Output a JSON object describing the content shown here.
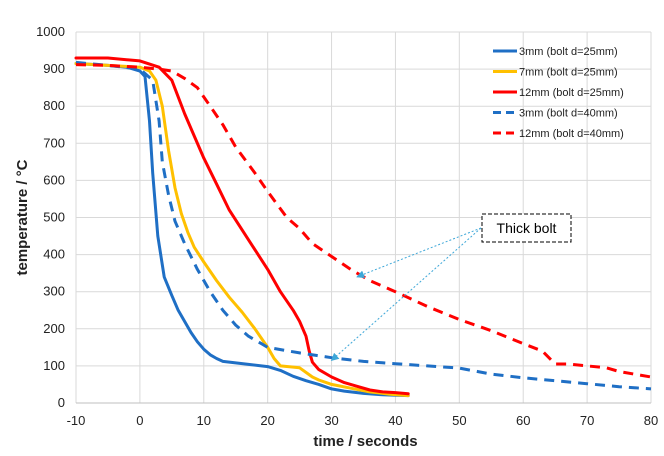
{
  "chart_data": {
    "type": "line",
    "title": "",
    "xlabel": "time / seconds",
    "ylabel": "temperature / °C",
    "xlim": [
      -10,
      80
    ],
    "ylim": [
      0,
      1000
    ],
    "xticks": [
      -10,
      0,
      10,
      20,
      30,
      40,
      50,
      60,
      70,
      80
    ],
    "yticks": [
      0,
      100,
      200,
      300,
      400,
      500,
      600,
      700,
      800,
      900,
      1000
    ],
    "grid": true,
    "legend_position": "top-right",
    "series": [
      {
        "name": "3mm  (bolt  d=25mm)",
        "color": "#1f6fc5",
        "dash": "solid",
        "points": [
          [
            -10,
            915
          ],
          [
            -5,
            910
          ],
          [
            -2,
            905
          ],
          [
            0,
            895
          ],
          [
            0.8,
            880
          ],
          [
            1.5,
            760
          ],
          [
            2,
            620
          ],
          [
            2.8,
            450
          ],
          [
            3.8,
            340
          ],
          [
            5,
            290
          ],
          [
            6,
            250
          ],
          [
            7,
            220
          ],
          [
            8,
            190
          ],
          [
            9,
            165
          ],
          [
            10,
            145
          ],
          [
            11,
            130
          ],
          [
            12,
            120
          ],
          [
            13,
            112
          ],
          [
            15,
            108
          ],
          [
            17,
            104
          ],
          [
            19,
            100
          ],
          [
            20,
            98
          ],
          [
            22,
            88
          ],
          [
            24,
            72
          ],
          [
            26,
            60
          ],
          [
            28,
            50
          ],
          [
            30,
            38
          ],
          [
            32,
            32
          ],
          [
            35,
            26
          ],
          [
            38,
            22
          ],
          [
            42,
            20
          ]
        ]
      },
      {
        "name": "7mm  (bolt  d=25mm)",
        "color": "#ffc000",
        "dash": "solid",
        "points": [
          [
            -10,
            915
          ],
          [
            -5,
            910
          ],
          [
            0,
            905
          ],
          [
            1.5,
            895
          ],
          [
            2.5,
            870
          ],
          [
            3.5,
            800
          ],
          [
            4.5,
            680
          ],
          [
            5.5,
            580
          ],
          [
            6.5,
            510
          ],
          [
            7.5,
            460
          ],
          [
            8.5,
            420
          ],
          [
            10,
            380
          ],
          [
            12,
            330
          ],
          [
            14,
            285
          ],
          [
            16,
            245
          ],
          [
            18,
            200
          ],
          [
            19,
            175
          ],
          [
            20,
            150
          ],
          [
            21,
            120
          ],
          [
            22,
            100
          ],
          [
            25,
            95
          ],
          [
            27,
            70
          ],
          [
            28,
            62
          ],
          [
            30,
            50
          ],
          [
            33,
            40
          ],
          [
            36,
            30
          ],
          [
            39,
            24
          ],
          [
            42,
            20
          ]
        ]
      },
      {
        "name": "12mm  (bolt  d=25mm)",
        "color": "#ff0000",
        "dash": "solid",
        "points": [
          [
            -10,
            930
          ],
          [
            -5,
            930
          ],
          [
            0,
            922
          ],
          [
            3,
            905
          ],
          [
            5,
            870
          ],
          [
            7,
            780
          ],
          [
            8,
            740
          ],
          [
            10,
            660
          ],
          [
            12,
            590
          ],
          [
            14,
            520
          ],
          [
            17,
            440
          ],
          [
            20,
            360
          ],
          [
            22,
            300
          ],
          [
            24,
            250
          ],
          [
            25,
            220
          ],
          [
            26,
            180
          ],
          [
            26.5,
            140
          ],
          [
            27,
            110
          ],
          [
            28,
            90
          ],
          [
            30,
            70
          ],
          [
            32,
            55
          ],
          [
            34,
            45
          ],
          [
            36,
            35
          ],
          [
            38,
            30
          ],
          [
            40,
            28
          ],
          [
            42,
            25
          ]
        ]
      },
      {
        "name": "3mm  (bolt  d=40mm)",
        "color": "#1f6fc5",
        "dash": "dashed",
        "points": [
          [
            -10,
            918
          ],
          [
            -5,
            910
          ],
          [
            0,
            900
          ],
          [
            2,
            870
          ],
          [
            3,
            760
          ],
          [
            3.5,
            650
          ],
          [
            4.5,
            560
          ],
          [
            5.5,
            490
          ],
          [
            7,
            430
          ],
          [
            9,
            360
          ],
          [
            11,
            300
          ],
          [
            13,
            250
          ],
          [
            15,
            210
          ],
          [
            17,
            180
          ],
          [
            19,
            160
          ],
          [
            20,
            150
          ],
          [
            25,
            135
          ],
          [
            30,
            122
          ],
          [
            35,
            112
          ],
          [
            40,
            106
          ],
          [
            45,
            100
          ],
          [
            50,
            94
          ],
          [
            55,
            78
          ],
          [
            60,
            68
          ],
          [
            65,
            60
          ],
          [
            70,
            52
          ],
          [
            75,
            44
          ],
          [
            80,
            38
          ]
        ]
      },
      {
        "name": "12mm  (bolt  d=40mm)",
        "color": "#ff0000",
        "dash": "dashed",
        "points": [
          [
            -10,
            912
          ],
          [
            -5,
            910
          ],
          [
            0,
            905
          ],
          [
            3,
            900
          ],
          [
            5,
            895
          ],
          [
            7,
            875
          ],
          [
            9,
            850
          ],
          [
            11,
            800
          ],
          [
            13,
            750
          ],
          [
            15,
            690
          ],
          [
            18,
            620
          ],
          [
            20,
            570
          ],
          [
            23,
            500
          ],
          [
            25,
            470
          ],
          [
            27,
            430
          ],
          [
            30,
            395
          ],
          [
            33,
            360
          ],
          [
            36,
            330
          ],
          [
            40,
            300
          ],
          [
            45,
            260
          ],
          [
            50,
            225
          ],
          [
            55,
            195
          ],
          [
            60,
            160
          ],
          [
            63,
            140
          ],
          [
            65,
            105
          ],
          [
            67,
            105
          ],
          [
            70,
            100
          ],
          [
            73,
            95
          ],
          [
            75,
            85
          ],
          [
            80,
            70
          ]
        ]
      }
    ],
    "annotations": [
      {
        "text": "Thick bolt",
        "arrows_to": [
          [
            34,
            340
          ],
          [
            30,
            115
          ]
        ]
      }
    ]
  }
}
